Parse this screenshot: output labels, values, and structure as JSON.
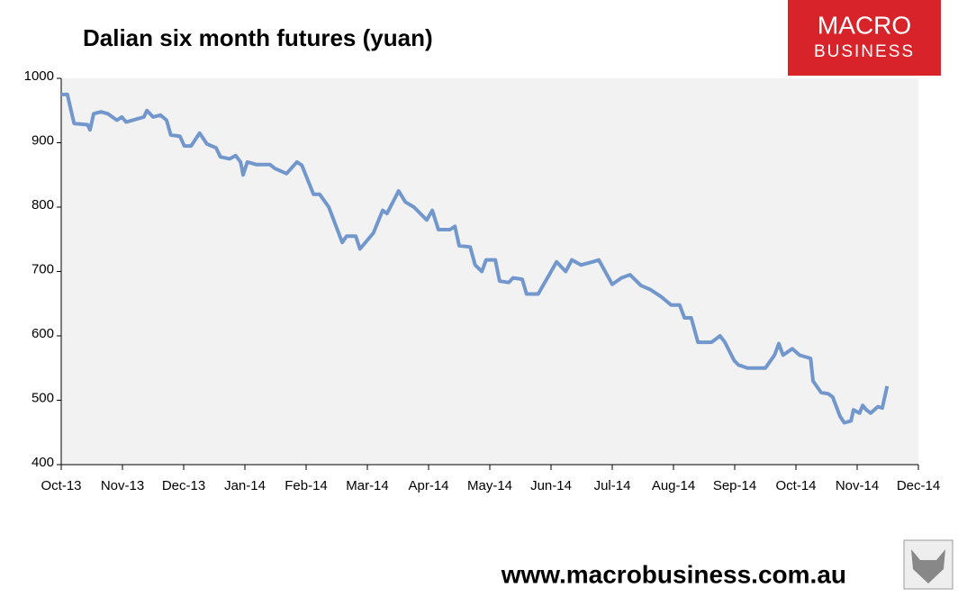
{
  "chart_data": {
    "type": "line",
    "title": "Dalian six month futures (yuan)",
    "x": [
      0,
      0.1,
      0.21,
      0.43,
      0.47,
      0.53,
      0.65,
      0.76,
      0.91,
      0.99,
      1.06,
      1.35,
      1.4,
      1.5,
      1.62,
      1.72,
      1.79,
      1.94,
      2.01,
      2.12,
      2.26,
      2.38,
      2.53,
      2.6,
      2.75,
      2.85,
      2.93,
      2.97,
      3.04,
      3.19,
      3.41,
      3.49,
      3.68,
      3.85,
      3.93,
      4.12,
      4.22,
      4.37,
      4.59,
      4.66,
      4.81,
      4.88,
      5.1,
      5.25,
      5.32,
      5.43,
      5.51,
      5.62,
      5.76,
      5.97,
      6.06,
      6.16,
      6.35,
      6.43,
      6.5,
      6.68,
      6.76,
      6.87,
      6.94,
      7.09,
      7.16,
      7.31,
      7.38,
      7.53,
      7.6,
      7.79,
      7.97,
      8.09,
      8.24,
      8.34,
      8.49,
      8.68,
      8.78,
      9.0,
      9.15,
      9.29,
      9.47,
      9.62,
      9.81,
      9.96,
      10.1,
      10.18,
      10.29,
      10.4,
      10.62,
      10.76,
      10.84,
      10.99,
      11.06,
      11.21,
      11.5,
      11.65,
      11.72,
      11.79,
      11.94,
      12.06,
      12.24,
      12.28,
      12.41,
      12.53,
      12.6,
      12.72,
      12.79,
      12.9,
      12.94,
      13.04,
      13.09,
      13.15,
      13.22,
      13.34,
      13.41,
      13.49
    ],
    "values": [
      975,
      975,
      930,
      928,
      920,
      945,
      948,
      945,
      935,
      940,
      932,
      940,
      950,
      940,
      943,
      935,
      912,
      910,
      895,
      895,
      915,
      898,
      892,
      878,
      875,
      880,
      870,
      850,
      870,
      866,
      866,
      860,
      852,
      870,
      865,
      820,
      820,
      800,
      745,
      755,
      755,
      735,
      760,
      795,
      790,
      810,
      825,
      808,
      800,
      780,
      795,
      765,
      765,
      770,
      740,
      738,
      710,
      700,
      718,
      718,
      685,
      683,
      690,
      688,
      665,
      665,
      695,
      715,
      700,
      718,
      710,
      715,
      718,
      680,
      690,
      695,
      678,
      672,
      660,
      648,
      648,
      628,
      628,
      590,
      590,
      600,
      590,
      562,
      555,
      550,
      550,
      570,
      588,
      570,
      580,
      570,
      565,
      530,
      512,
      510,
      505,
      475,
      465,
      468,
      485,
      480,
      492,
      485,
      480,
      490,
      488,
      522
    ],
    "color": "#7297cc",
    "xlim": [
      0,
      14
    ],
    "xticks": [
      {
        "value": 0,
        "label": "Oct-13"
      },
      {
        "value": 1,
        "label": "Nov-13"
      },
      {
        "value": 2,
        "label": "Dec-13"
      },
      {
        "value": 3,
        "label": "Jan-14"
      },
      {
        "value": 4,
        "label": "Feb-14"
      },
      {
        "value": 5,
        "label": "Mar-14"
      },
      {
        "value": 6,
        "label": "Apr-14"
      },
      {
        "value": 7,
        "label": "May-14"
      },
      {
        "value": 8,
        "label": "Jun-14"
      },
      {
        "value": 9,
        "label": "Jul-14"
      },
      {
        "value": 10,
        "label": "Aug-14"
      },
      {
        "value": 11,
        "label": "Sep-14"
      },
      {
        "value": 12,
        "label": "Oct-14"
      },
      {
        "value": 13,
        "label": "Nov-14"
      },
      {
        "value": 14,
        "label": "Dec-14"
      }
    ],
    "ylim": [
      400,
      1000
    ],
    "yticks": [
      400,
      500,
      600,
      700,
      800,
      900,
      1000
    ],
    "grid": false
  },
  "logo": [
    "MACRO",
    "BUSINESS"
  ],
  "footer": "www.macrobusiness.com.au"
}
